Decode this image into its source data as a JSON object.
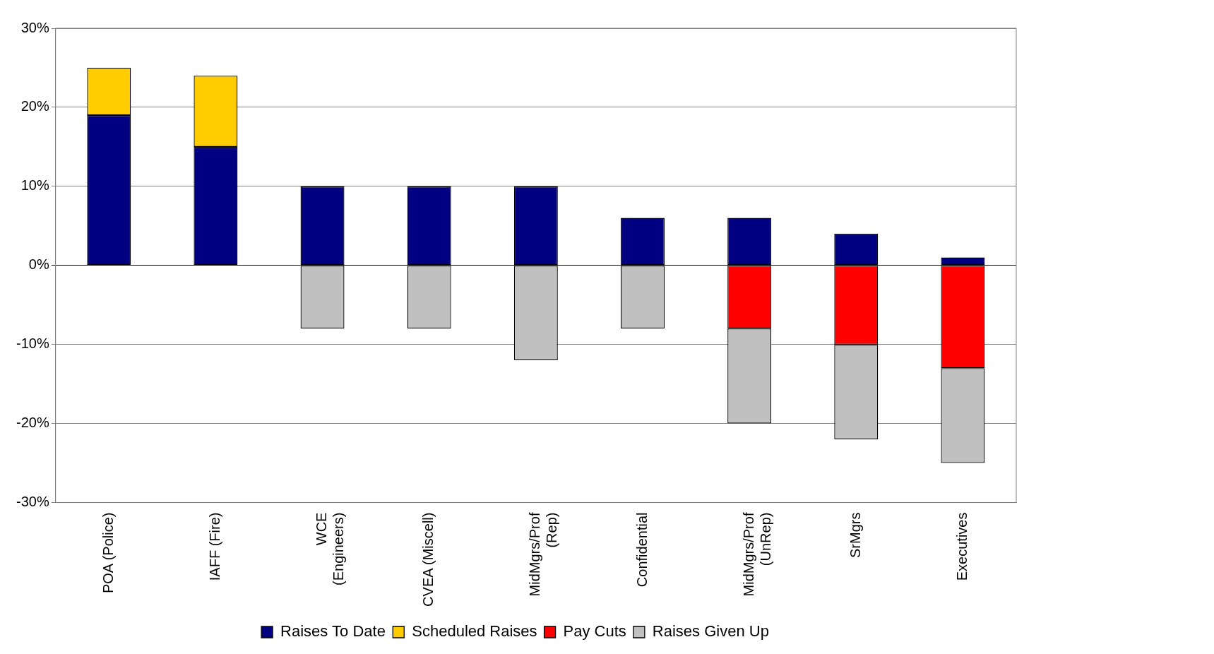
{
  "chart_data": {
    "type": "bar",
    "stacked": true,
    "categories": [
      "POA (Police)",
      "IAFF (Fire)",
      "WCE\n(Engineers)",
      "CVEA (Miscell)",
      "MidMgrs/Prof\n(Rep)",
      "Confidential",
      "MidMgrs/Prof\n(UnRep)",
      "SrMgrs",
      "Executives"
    ],
    "series": [
      {
        "name": "Raises To Date",
        "color": "#000080",
        "values": [
          19,
          15,
          10,
          10,
          10,
          6,
          6,
          4,
          1
        ]
      },
      {
        "name": "Scheduled Raises",
        "color": "#ffcc00",
        "values": [
          6,
          9,
          null,
          null,
          null,
          null,
          null,
          null,
          null
        ]
      },
      {
        "name": "Pay Cuts",
        "color": "#ff0000",
        "values": [
          null,
          null,
          null,
          null,
          null,
          null,
          -8,
          -10,
          -13
        ]
      },
      {
        "name": "Raises Given Up",
        "color": "#c0c0c0",
        "values": [
          null,
          null,
          -8,
          -8,
          -12,
          -8,
          -12,
          -12,
          -12
        ]
      }
    ],
    "ylim": [
      -30,
      30
    ],
    "yticks": [
      {
        "value": -30,
        "label": "-30%"
      },
      {
        "value": -20,
        "label": "-20%"
      },
      {
        "value": -10,
        "label": "-10%"
      },
      {
        "value": 0,
        "label": "0%"
      },
      {
        "value": 10,
        "label": "10%"
      },
      {
        "value": 20,
        "label": "20%"
      },
      {
        "value": 30,
        "label": "30%"
      }
    ],
    "grid": "y",
    "legend": "bottom"
  }
}
